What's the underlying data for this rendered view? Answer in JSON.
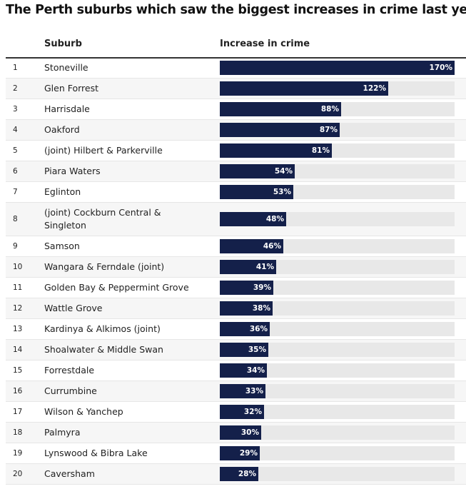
{
  "title": "The Perth suburbs which saw the biggest increases in crime last year",
  "columns": {
    "suburb": "Suburb",
    "increase": "Increase in crime"
  },
  "colors": {
    "bar": "#14204a",
    "track": "#e8e8e8",
    "row_alt": "#f6f6f6"
  },
  "chart_data": {
    "type": "bar",
    "orientation": "horizontal",
    "title": "The Perth suburbs which saw the biggest increases in crime last year",
    "xlim": [
      0,
      170
    ],
    "unit": "%",
    "rows": [
      {
        "rank": "1",
        "suburb": "Stoneville",
        "value": 170,
        "label": "170%"
      },
      {
        "rank": "2",
        "suburb": "Glen Forrest",
        "value": 122,
        "label": "122%"
      },
      {
        "rank": "3",
        "suburb": "Harrisdale",
        "value": 88,
        "label": "88%"
      },
      {
        "rank": "4",
        "suburb": "Oakford",
        "value": 87,
        "label": "87%"
      },
      {
        "rank": "5",
        "suburb": "(joint) Hilbert & Parkerville",
        "value": 81,
        "label": "81%"
      },
      {
        "rank": "6",
        "suburb": "Piara Waters",
        "value": 54,
        "label": "54%"
      },
      {
        "rank": "7",
        "suburb": "Eglinton",
        "value": 53,
        "label": "53%"
      },
      {
        "rank": "8",
        "suburb": "(joint) Cockburn Central & Singleton",
        "value": 48,
        "label": "48%"
      },
      {
        "rank": "9",
        "suburb": "Samson",
        "value": 46,
        "label": "46%"
      },
      {
        "rank": "10",
        "suburb": "Wangara & Ferndale (joint)",
        "value": 41,
        "label": "41%"
      },
      {
        "rank": "11",
        "suburb": "Golden Bay & Peppermint Grove",
        "value": 39,
        "label": "39%"
      },
      {
        "rank": "12",
        "suburb": "Wattle Grove",
        "value": 38,
        "label": "38%"
      },
      {
        "rank": "13",
        "suburb": "Kardinya & Alkimos (joint)",
        "value": 36,
        "label": "36%"
      },
      {
        "rank": "14",
        "suburb": "Shoalwater & Middle Swan",
        "value": 35,
        "label": "35%"
      },
      {
        "rank": "15",
        "suburb": "Forrestdale",
        "value": 34,
        "label": "34%"
      },
      {
        "rank": "16",
        "suburb": "Currumbine",
        "value": 33,
        "label": "33%"
      },
      {
        "rank": "17",
        "suburb": "Wilson & Yanchep",
        "value": 32,
        "label": "32%"
      },
      {
        "rank": "18",
        "suburb": "Palmyra",
        "value": 30,
        "label": "30%"
      },
      {
        "rank": "19",
        "suburb": "Lynswood & Bibra Lake",
        "value": 29,
        "label": "29%"
      },
      {
        "rank": "20",
        "suburb": "Caversham",
        "value": 28,
        "label": "28%"
      }
    ]
  }
}
